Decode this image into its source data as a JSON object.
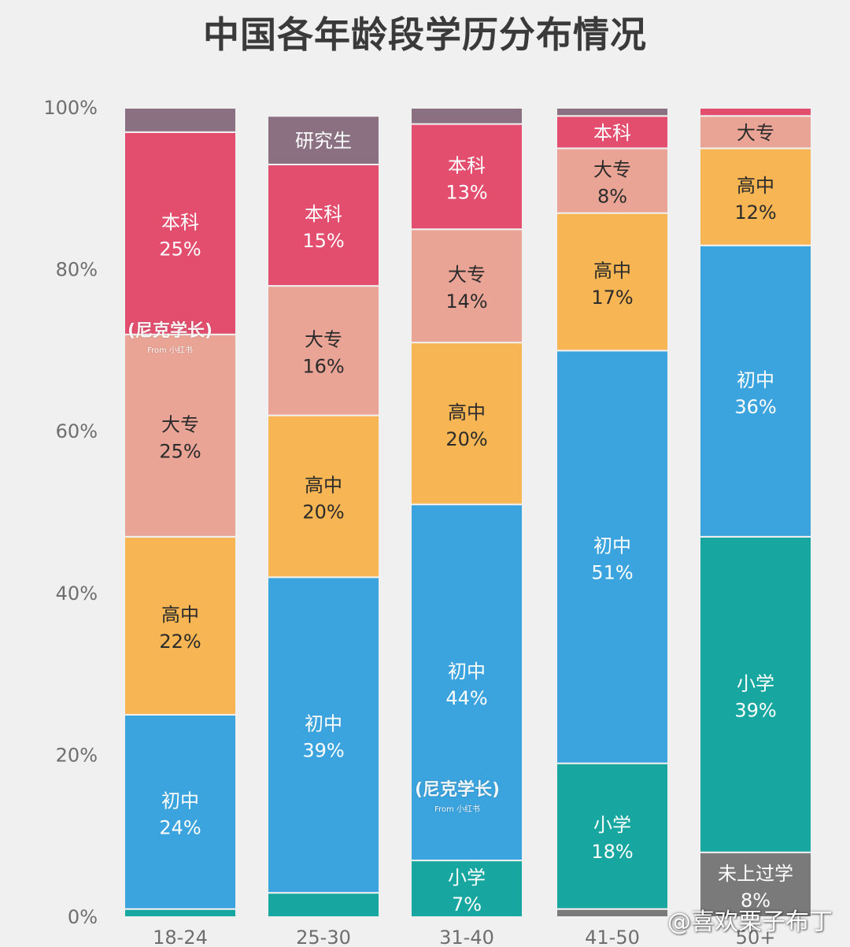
{
  "title": "中国各年龄段学历分布情况",
  "watermark": "@喜欢栗子布丁",
  "logo_text": "(尼克学长)",
  "logo_sub": "From 小红书",
  "chart_data": {
    "type": "bar",
    "stacked": true,
    "title": "中国各年龄段学历分布情况",
    "xlabel": "",
    "ylabel": "",
    "ylim": [
      0,
      100
    ],
    "y_ticks": [
      "0%",
      "20%",
      "40%",
      "60%",
      "80%",
      "100%"
    ],
    "categories": [
      "18-24",
      "25-30",
      "31-40",
      "41-50",
      "50+"
    ],
    "series": [
      {
        "name": "未上过学",
        "color": "#7a7a7a",
        "values": [
          0,
          0,
          0,
          1,
          8
        ]
      },
      {
        "name": "小学",
        "color": "#17a6a0",
        "values": [
          1,
          3,
          7,
          18,
          39
        ]
      },
      {
        "name": "初中",
        "color": "#3ba3de",
        "values": [
          24,
          39,
          44,
          51,
          36
        ]
      },
      {
        "name": "高中",
        "color": "#f7b553",
        "values": [
          22,
          20,
          20,
          17,
          12
        ]
      },
      {
        "name": "大专",
        "color": "#eaa496",
        "values": [
          25,
          16,
          14,
          8,
          4
        ]
      },
      {
        "name": "本科",
        "color": "#e34d6e",
        "values": [
          25,
          15,
          13,
          4,
          1
        ]
      },
      {
        "name": "研究生",
        "color": "#8b7082",
        "values": [
          3,
          6,
          2,
          1,
          0
        ]
      }
    ],
    "segment_labels": [
      {
        "cat": 0,
        "series": 1,
        "name": "",
        "pct": ""
      },
      {
        "cat": 0,
        "series": 2,
        "name": "初中",
        "pct": "24%"
      },
      {
        "cat": 0,
        "series": 3,
        "name": "高中",
        "pct": "22%"
      },
      {
        "cat": 0,
        "series": 4,
        "name": "大专",
        "pct": "25%"
      },
      {
        "cat": 0,
        "series": 5,
        "name": "本科",
        "pct": "25%"
      },
      {
        "cat": 1,
        "series": 2,
        "name": "初中",
        "pct": "39%"
      },
      {
        "cat": 1,
        "series": 3,
        "name": "高中",
        "pct": "20%"
      },
      {
        "cat": 1,
        "series": 4,
        "name": "大专",
        "pct": "16%"
      },
      {
        "cat": 1,
        "series": 5,
        "name": "本科",
        "pct": "15%"
      },
      {
        "cat": 1,
        "series": 6,
        "name": "研究生",
        "pct": ""
      },
      {
        "cat": 2,
        "series": 1,
        "name": "小学",
        "pct": "7%"
      },
      {
        "cat": 2,
        "series": 2,
        "name": "初中",
        "pct": "44%"
      },
      {
        "cat": 2,
        "series": 3,
        "name": "高中",
        "pct": "20%"
      },
      {
        "cat": 2,
        "series": 4,
        "name": "大专",
        "pct": "14%"
      },
      {
        "cat": 2,
        "series": 5,
        "name": "本科",
        "pct": "13%"
      },
      {
        "cat": 3,
        "series": 1,
        "name": "小学",
        "pct": "18%"
      },
      {
        "cat": 3,
        "series": 2,
        "name": "初中",
        "pct": "51%"
      },
      {
        "cat": 3,
        "series": 3,
        "name": "高中",
        "pct": "17%"
      },
      {
        "cat": 3,
        "series": 4,
        "name": "大专",
        "pct": "8%"
      },
      {
        "cat": 3,
        "series": 5,
        "name": "本科",
        "pct": ""
      },
      {
        "cat": 4,
        "series": 0,
        "name": "未上过学",
        "pct": "8%"
      },
      {
        "cat": 4,
        "series": 1,
        "name": "小学",
        "pct": "39%"
      },
      {
        "cat": 4,
        "series": 2,
        "name": "初中",
        "pct": "36%"
      },
      {
        "cat": 4,
        "series": 3,
        "name": "高中",
        "pct": "12%"
      },
      {
        "cat": 4,
        "series": 4,
        "name": "大专",
        "pct": ""
      }
    ],
    "label_colors": {
      "dark": "#2b2b2b",
      "light": "#ffffff"
    },
    "grid": false,
    "legend": "none"
  }
}
